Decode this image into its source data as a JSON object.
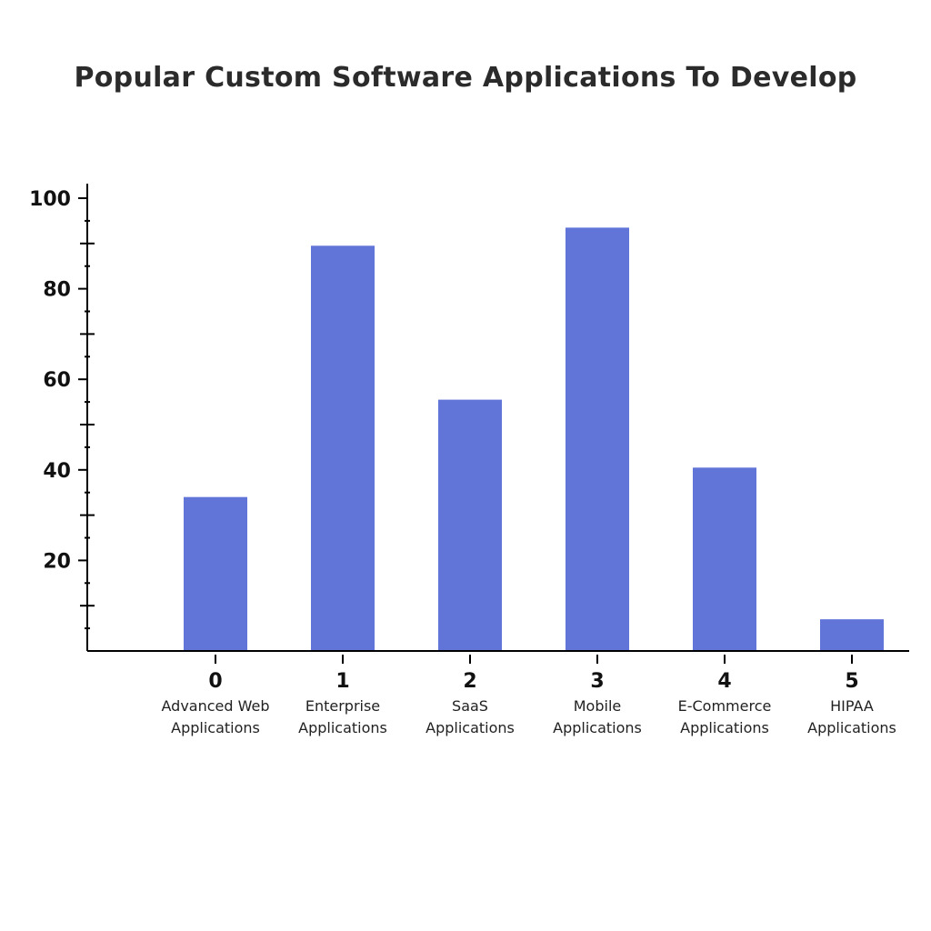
{
  "chart_data": {
    "type": "bar",
    "title": "Popular Custom Software Applications To Develop",
    "xlabel": "",
    "ylabel": "",
    "categories": [
      "0",
      "1",
      "2",
      "3",
      "4",
      "5"
    ],
    "category_descriptions": [
      [
        "Advanced Web",
        "Applications"
      ],
      [
        "Enterprise",
        "Applications"
      ],
      [
        "SaaS",
        "Applications"
      ],
      [
        "Mobile",
        "Applications"
      ],
      [
        "E-Commerce",
        "Applications"
      ],
      [
        "HIPAA",
        "Applications"
      ]
    ],
    "values": [
      34,
      89.5,
      55.5,
      93.5,
      40.5,
      7
    ],
    "ylim": [
      0,
      100
    ],
    "y_ticks": [
      20,
      40,
      60,
      80,
      100
    ],
    "grid": false,
    "bar_color": "#6175d9"
  }
}
